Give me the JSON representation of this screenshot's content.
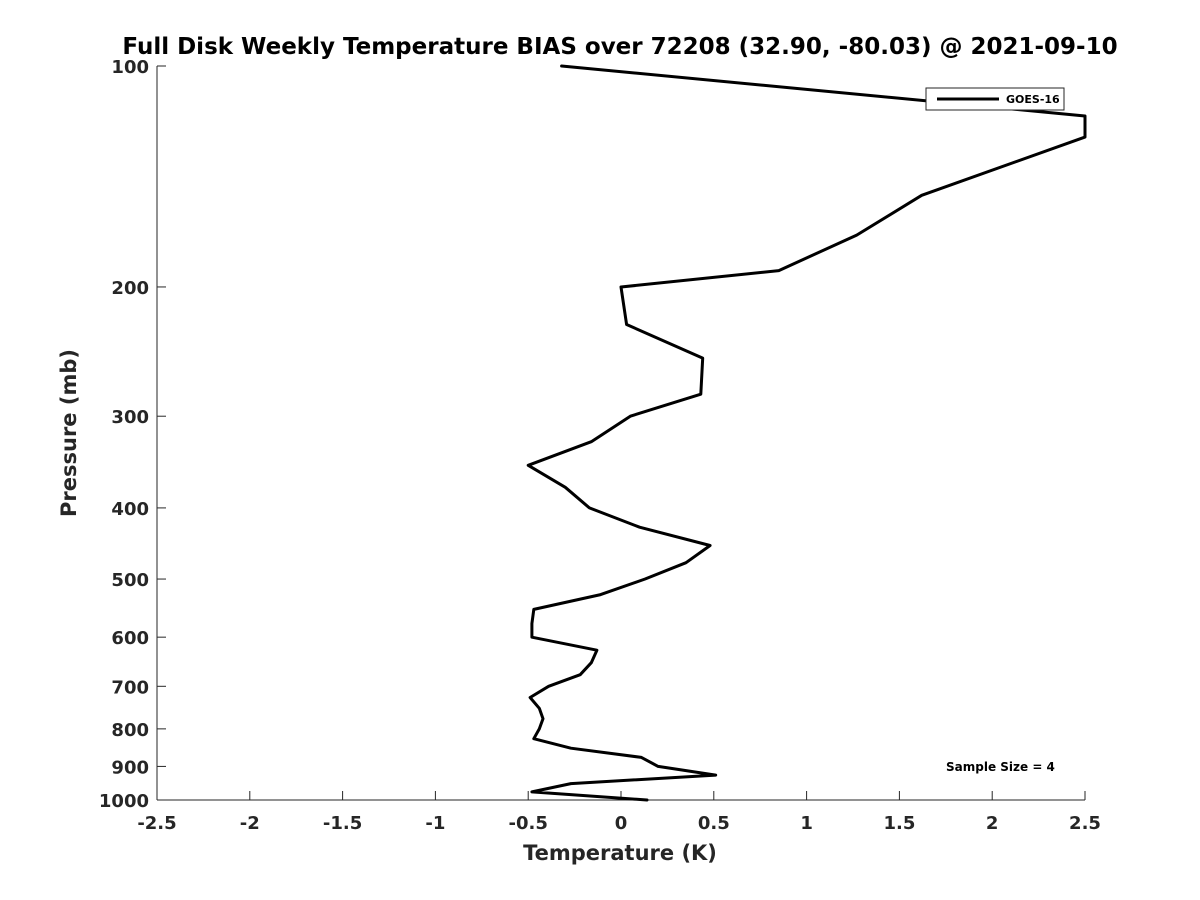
{
  "chart_data": {
    "type": "line",
    "title": "Full Disk Weekly Temperature BIAS over 72208 (32.90, -80.03) @ 2021-09-10",
    "xlabel": "Temperature (K)",
    "ylabel": "Pressure (mb)",
    "xlim": [
      -2.5,
      2.5
    ],
    "ylim": [
      1000,
      100
    ],
    "yscale": "log",
    "y_reversed": true,
    "x_ticks": [
      -2.5,
      -2,
      -1.5,
      -1,
      -0.5,
      0,
      0.5,
      1,
      1.5,
      2,
      2.5
    ],
    "x_tick_labels": [
      "-2.5",
      "-2",
      "-1.5",
      "-1",
      "-0.5",
      "0",
      "0.5",
      "1",
      "1.5",
      "2",
      "2.5"
    ],
    "y_ticks": [
      100,
      200,
      300,
      400,
      500,
      600,
      700,
      800,
      900,
      1000
    ],
    "y_tick_labels": [
      "100",
      "200",
      "300",
      "400",
      "500",
      "600",
      "700",
      "800",
      "900",
      "1000"
    ],
    "grid": false,
    "legend_position": "top-right",
    "annotation": "Sample Size = 4",
    "series": [
      {
        "name": "GOES-16",
        "color": "#000000",
        "points": [
          {
            "x": -0.32,
            "y": 100
          },
          {
            "x": 2.5,
            "y": 117
          },
          {
            "x": 2.5,
            "y": 125
          },
          {
            "x": 1.62,
            "y": 150
          },
          {
            "x": 1.27,
            "y": 170
          },
          {
            "x": 0.85,
            "y": 190
          },
          {
            "x": 0.0,
            "y": 200
          },
          {
            "x": 0.03,
            "y": 225
          },
          {
            "x": 0.44,
            "y": 250
          },
          {
            "x": 0.43,
            "y": 280
          },
          {
            "x": 0.05,
            "y": 300
          },
          {
            "x": -0.16,
            "y": 325
          },
          {
            "x": -0.5,
            "y": 350
          },
          {
            "x": -0.3,
            "y": 375
          },
          {
            "x": -0.17,
            "y": 400
          },
          {
            "x": 0.1,
            "y": 425
          },
          {
            "x": 0.48,
            "y": 450
          },
          {
            "x": 0.35,
            "y": 475
          },
          {
            "x": 0.13,
            "y": 500
          },
          {
            "x": -0.11,
            "y": 525
          },
          {
            "x": -0.47,
            "y": 550
          },
          {
            "x": -0.48,
            "y": 575
          },
          {
            "x": -0.48,
            "y": 600
          },
          {
            "x": -0.13,
            "y": 625
          },
          {
            "x": -0.16,
            "y": 650
          },
          {
            "x": -0.22,
            "y": 675
          },
          {
            "x": -0.39,
            "y": 700
          },
          {
            "x": -0.49,
            "y": 725
          },
          {
            "x": -0.44,
            "y": 750
          },
          {
            "x": -0.42,
            "y": 775
          },
          {
            "x": -0.44,
            "y": 800
          },
          {
            "x": -0.47,
            "y": 825
          },
          {
            "x": -0.27,
            "y": 850
          },
          {
            "x": 0.11,
            "y": 875
          },
          {
            "x": 0.2,
            "y": 900
          },
          {
            "x": 0.51,
            "y": 925
          },
          {
            "x": -0.27,
            "y": 950
          },
          {
            "x": -0.48,
            "y": 975
          },
          {
            "x": 0.14,
            "y": 1000
          }
        ]
      }
    ]
  }
}
